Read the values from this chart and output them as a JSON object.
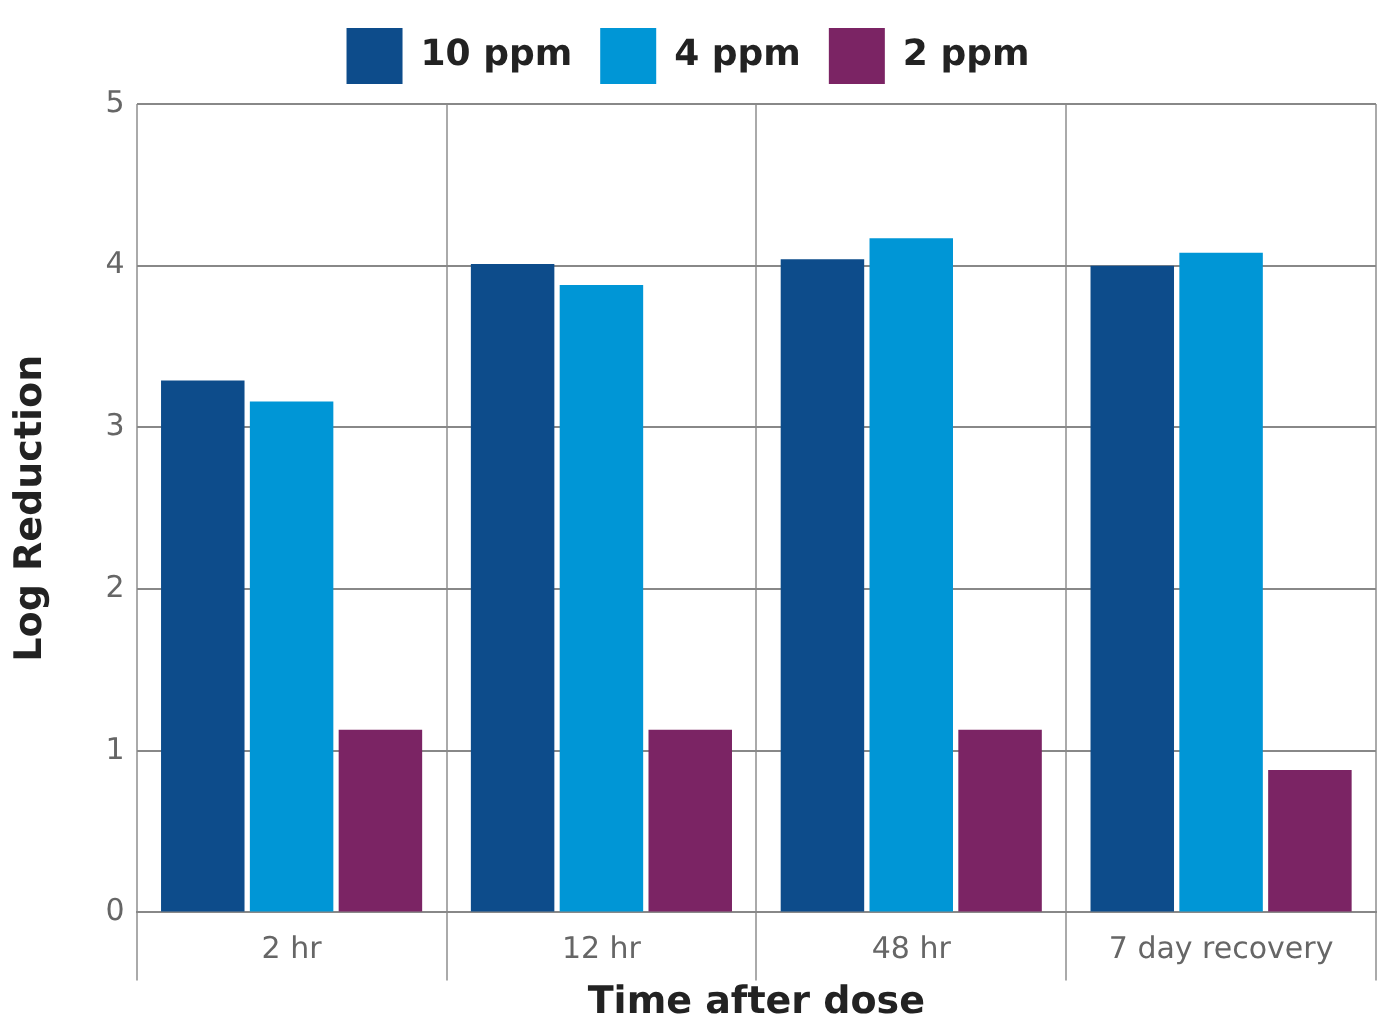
{
  "chart_data": {
    "type": "bar",
    "xlabel": "Time after dose",
    "ylabel": "Log Reduction",
    "categories": [
      "2 hr",
      "12 hr",
      "48 hr",
      "7 day recovery"
    ],
    "series": [
      {
        "name": "10 ppm",
        "color": "#0d4c8b",
        "values": [
          3.29,
          4.01,
          4.04,
          4.0
        ]
      },
      {
        "name": "4 ppm",
        "color": "#0096d6",
        "values": [
          3.16,
          3.88,
          4.17,
          4.08
        ]
      },
      {
        "name": "2 ppm",
        "color": "#7b2464",
        "values": [
          1.13,
          1.13,
          1.13,
          0.88
        ]
      }
    ],
    "ylim": [
      0,
      5
    ],
    "yticks": [
      0,
      1,
      2,
      3,
      4,
      5
    ],
    "grid": true,
    "legend": "top"
  }
}
